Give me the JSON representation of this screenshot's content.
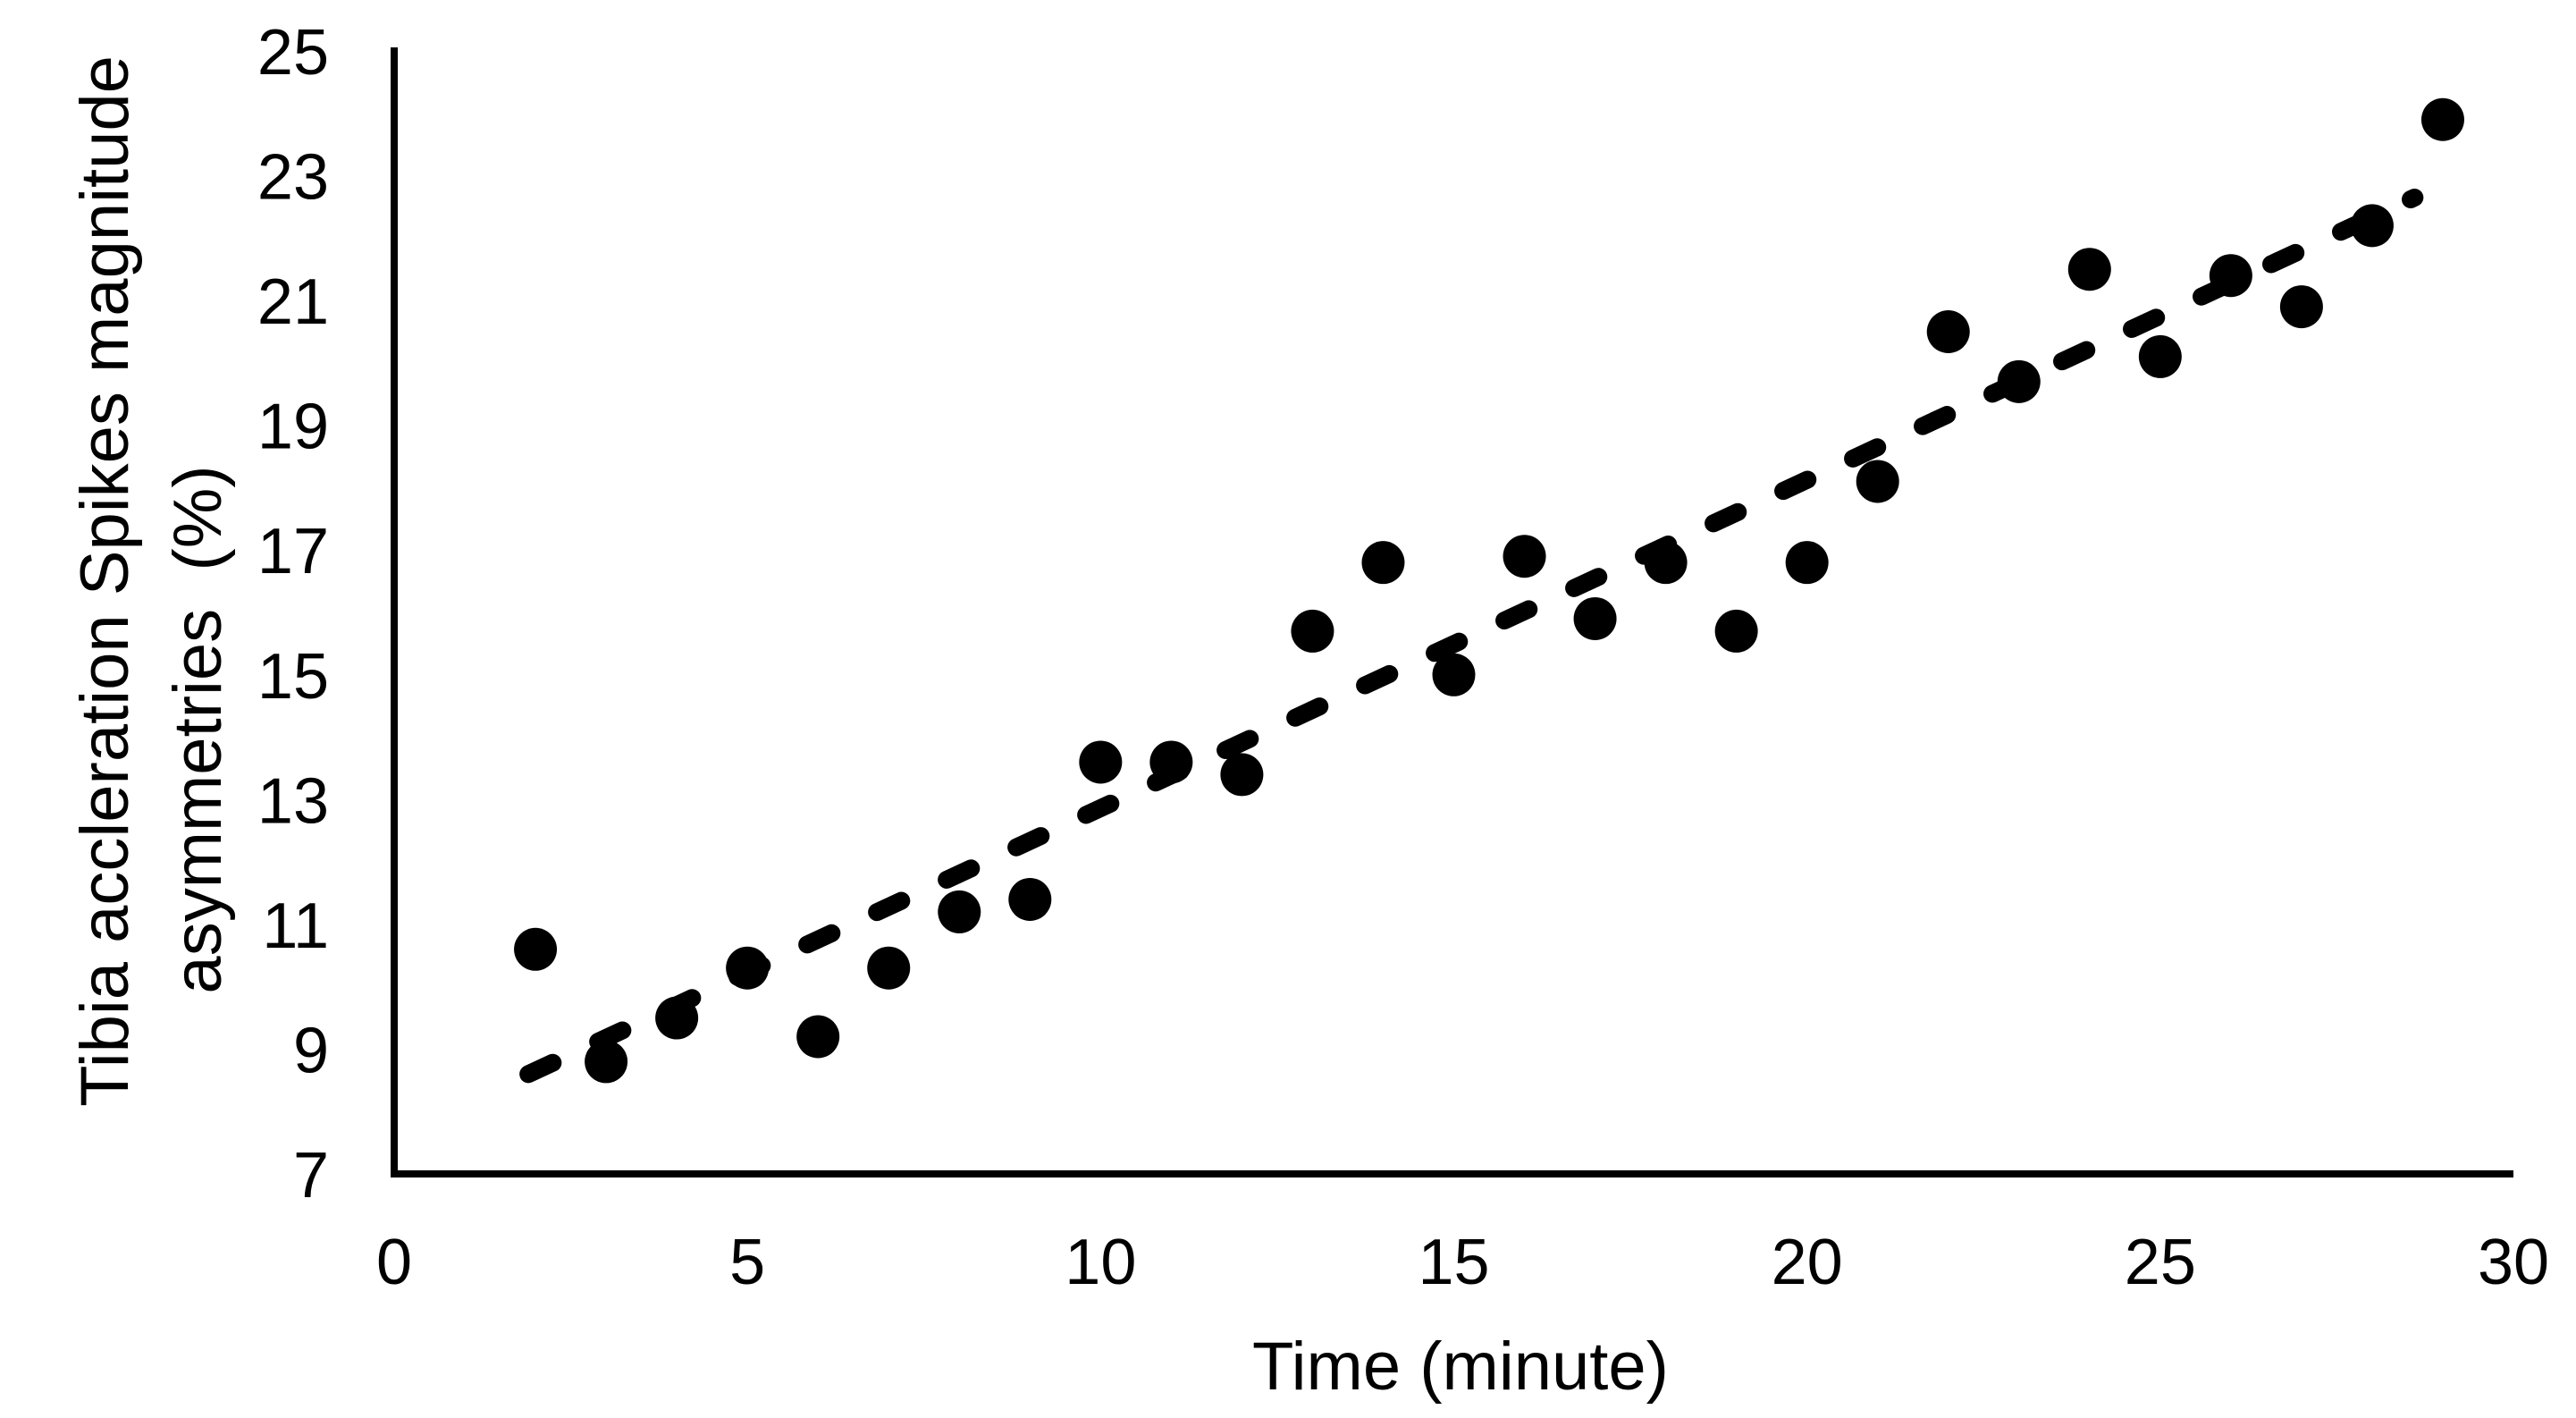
{
  "figure": {
    "background": "#ffffff",
    "ink_color": "#000000"
  },
  "chart_data": {
    "type": "scatter",
    "title": "",
    "xlabel": "Time (minute)",
    "ylabel_lines": [
      "Tibia accleration Spikes magnitude",
      "asymmetries  (%)"
    ],
    "xlim": [
      0,
      30
    ],
    "ylim": [
      7,
      25
    ],
    "xticks": [
      0,
      5,
      10,
      15,
      20,
      25,
      30
    ],
    "yticks": [
      7,
      9,
      11,
      13,
      15,
      17,
      19,
      21,
      23,
      25
    ],
    "grid": false,
    "legend": "none",
    "marker": {
      "shape": "circle",
      "color": "#000000",
      "radius_px": 24
    },
    "trendline": {
      "style": "dashed",
      "color": "#000000",
      "x1": 1.9,
      "y1": 8.6,
      "x2": 28.6,
      "y2": 22.65
    },
    "points": [
      [
        2,
        10.6
      ],
      [
        3,
        8.8
      ],
      [
        4,
        9.5
      ],
      [
        5,
        10.3
      ],
      [
        6,
        9.2
      ],
      [
        7,
        10.3
      ],
      [
        8,
        11.2
      ],
      [
        9,
        11.4
      ],
      [
        10,
        13.6
      ],
      [
        11,
        13.6
      ],
      [
        12,
        13.4
      ],
      [
        13,
        15.7
      ],
      [
        14,
        16.8
      ],
      [
        15,
        15.0
      ],
      [
        16,
        16.9
      ],
      [
        17,
        15.9
      ],
      [
        18,
        16.8
      ],
      [
        19,
        15.7
      ],
      [
        20,
        16.8
      ],
      [
        21,
        18.1
      ],
      [
        22,
        20.5
      ],
      [
        23,
        19.7
      ],
      [
        24,
        21.5
      ],
      [
        25,
        20.1
      ],
      [
        26,
        21.4
      ],
      [
        27,
        20.9
      ],
      [
        28,
        22.2
      ],
      [
        29,
        23.9
      ]
    ]
  }
}
